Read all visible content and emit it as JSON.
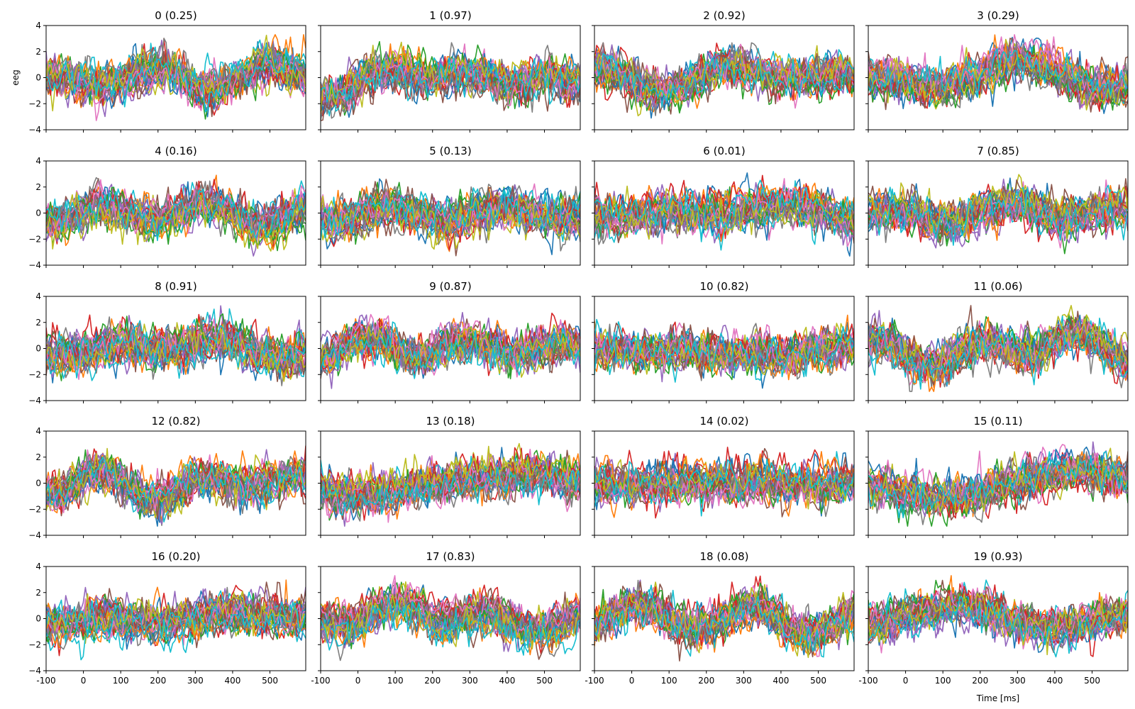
{
  "chart_data": {
    "type": "line",
    "layout": {
      "rows": 5,
      "cols": 4
    },
    "shared_x": true,
    "shared_y": true,
    "ylabel": "eeg",
    "xlabel": "Time [ms]",
    "xlim": [
      -100,
      596
    ],
    "ylim": [
      -4,
      4
    ],
    "x_ticks": [
      -100,
      0,
      100,
      200,
      300,
      400,
      500
    ],
    "y_ticks": [
      -4,
      -2,
      0,
      2,
      4
    ],
    "grid": false,
    "legend": "none",
    "series_per_panel": 30,
    "series_colors": [
      "#1f77b4",
      "#ff7f0e",
      "#2ca02c",
      "#d62728",
      "#9467bd",
      "#8c564b",
      "#e377c2",
      "#7f7f7f",
      "#bcbd22",
      "#17becf"
    ],
    "panels": [
      {
        "title": "0 (0.25)"
      },
      {
        "title": "1 (0.97)"
      },
      {
        "title": "2 (0.92)"
      },
      {
        "title": "3 (0.29)"
      },
      {
        "title": "4 (0.16)"
      },
      {
        "title": "5 (0.13)"
      },
      {
        "title": "6 (0.01)"
      },
      {
        "title": "7 (0.85)"
      },
      {
        "title": "8 (0.91)"
      },
      {
        "title": "9 (0.87)"
      },
      {
        "title": "10 (0.82)"
      },
      {
        "title": "11 (0.06)"
      },
      {
        "title": "12 (0.82)"
      },
      {
        "title": "13 (0.18)"
      },
      {
        "title": "14 (0.02)"
      },
      {
        "title": "15 (0.11)"
      },
      {
        "title": "16 (0.20)"
      },
      {
        "title": "17 (0.83)"
      },
      {
        "title": "18 (0.08)"
      },
      {
        "title": "19 (0.93)"
      }
    ]
  }
}
